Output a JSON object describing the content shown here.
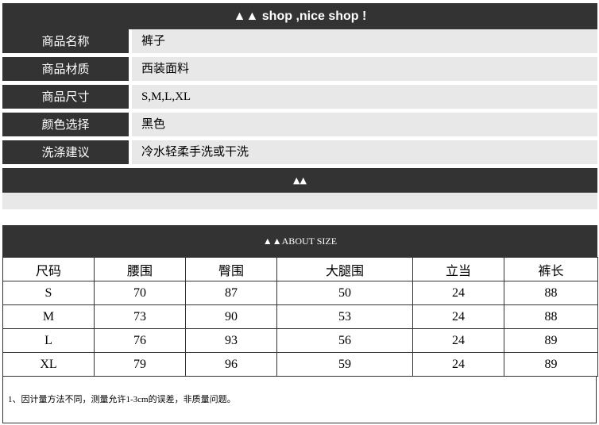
{
  "header": {
    "title": "▲▲ shop ,nice shop !"
  },
  "info": [
    {
      "label": "商品名称",
      "value": "裤子"
    },
    {
      "label": "商品材质",
      "value": "西装面料"
    },
    {
      "label": "商品尺寸",
      "value": "S,M,L,XL"
    },
    {
      "label": "颜色选择",
      "value": "黑色"
    },
    {
      "label": "洗涤建议",
      "value": "冷水轻柔手洗或干洗"
    }
  ],
  "divider": {
    "label": "▲▲"
  },
  "size": {
    "title": "▲▲ABOUT SIZE",
    "headers": [
      "尺码",
      "腰围",
      "臀围",
      "大腿围",
      "立当",
      "裤长"
    ],
    "rows": [
      [
        "S",
        "70",
        "87",
        "50",
        "24",
        "88"
      ],
      [
        "M",
        "73",
        "90",
        "53",
        "24",
        "88"
      ],
      [
        "L",
        "76",
        "93",
        "56",
        "24",
        "89"
      ],
      [
        "XL",
        "79",
        "96",
        "59",
        "24",
        "89"
      ]
    ],
    "note": "1、因计量方法不同，测量允许1-3cm的误差，非质量问题。"
  }
}
